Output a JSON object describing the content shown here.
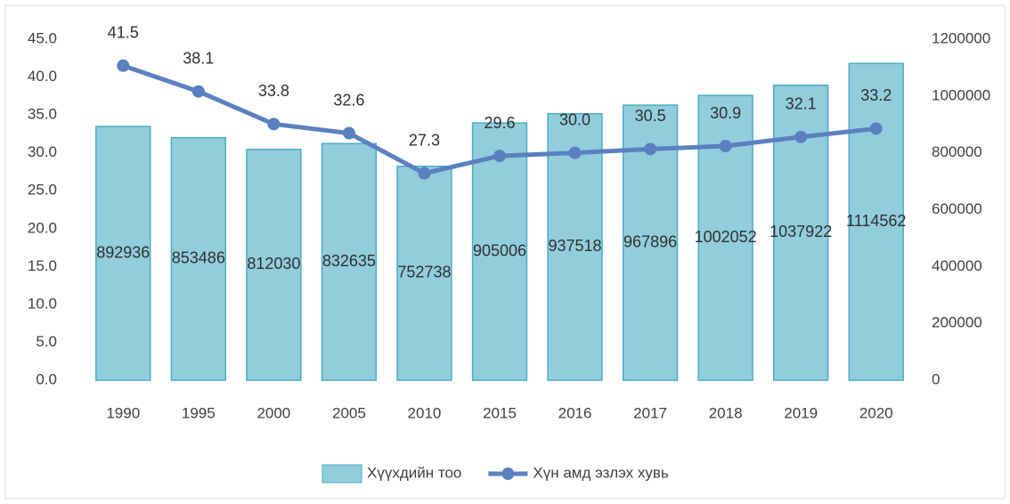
{
  "chart_data": {
    "type": "combo",
    "categories": [
      "1990",
      "1995",
      "2000",
      "2005",
      "2010",
      "2015",
      "2016",
      "2017",
      "2018",
      "2019",
      "2020"
    ],
    "series": [
      {
        "name": "Хүүхдийн тоо",
        "type": "bar",
        "axis": "y2",
        "color": "#92cddc",
        "edge_color": "#4bacc6",
        "values": [
          892936,
          853486,
          812030,
          832635,
          752738,
          905006,
          937518,
          967896,
          1002052,
          1037922,
          1114562
        ]
      },
      {
        "name": "Хүн амд эзлэх хувь",
        "type": "line",
        "color": "#5b80c0",
        "values": [
          41.5,
          38.1,
          33.8,
          32.6,
          27.3,
          29.6,
          30.0,
          30.5,
          30.9,
          32.1,
          33.2
        ],
        "value_labels": [
          "41.5",
          "38.1",
          "33.8",
          "32.6",
          "27.3",
          "29.6",
          "30.0",
          "30.5",
          "30.9",
          "32.1",
          "33.2"
        ]
      }
    ],
    "ylim": [
      0,
      45
    ],
    "yticks": [
      {
        "value": 0,
        "label": "0.0"
      },
      {
        "value": 5,
        "label": "5.0"
      },
      {
        "value": 10,
        "label": "10.0"
      },
      {
        "value": 15,
        "label": "15.0"
      },
      {
        "value": 20,
        "label": "20.0"
      },
      {
        "value": 25,
        "label": "25.0"
      },
      {
        "value": 30,
        "label": "30.0"
      },
      {
        "value": 35,
        "label": "35.0"
      },
      {
        "value": 40,
        "label": "40.0"
      },
      {
        "value": 45,
        "label": "45.0"
      }
    ],
    "y2lim": [
      0,
      1200000
    ],
    "y2ticks": [
      0,
      200000,
      400000,
      600000,
      800000,
      1000000,
      1200000
    ],
    "legend": "bottom"
  }
}
